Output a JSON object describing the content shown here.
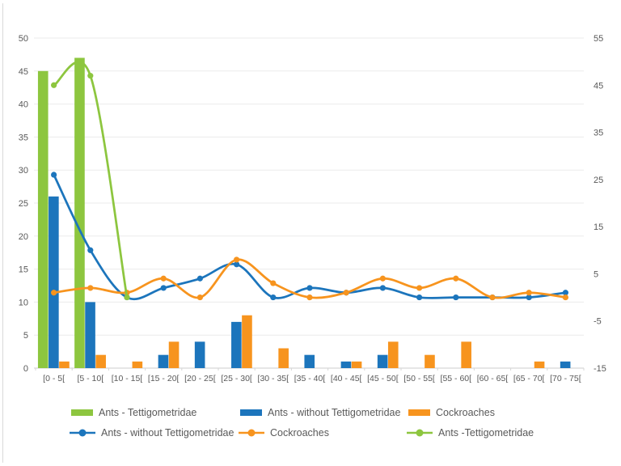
{
  "window": {
    "background": "#ffffff",
    "edge_color": "#d9d9d9"
  },
  "colors": {
    "green": "#8DC63F",
    "blue": "#1C75BC",
    "orange": "#F7941E",
    "gridline": "#EBEBEB",
    "axis_line": "#D6D6D6",
    "axis_text": "#595959"
  },
  "legend": {
    "bars": [
      {
        "key": "ants-tettigometridae",
        "label": "Ants - Tettigometridae",
        "color": "#8DC63F"
      },
      {
        "key": "ants-without-tettigometridae",
        "label": "Ants - without Tettigometridae",
        "color": "#1C75BC"
      },
      {
        "key": "cockroaches",
        "label": "Cockroaches",
        "color": "#F7941E"
      }
    ],
    "lines": [
      {
        "key": "ants-without-tettigometridae",
        "label": "Ants - without Tettigometridae",
        "color": "#1C75BC"
      },
      {
        "key": "cockroaches",
        "label": "Cockroaches",
        "color": "#F7941E"
      },
      {
        "key": "ants-tettigometridae",
        "label": "Ants -Tettigometridae",
        "color": "#8DC63F"
      }
    ]
  },
  "chart_data": {
    "type": "bar",
    "subtype": "combo-clustered-bar-plus-smoothed-line",
    "title": "",
    "xlabel": "",
    "ylabel": "",
    "grid": "horizontal, every 5 units of left axis",
    "legend_position": "bottom, two rows (bars row then lines row)",
    "categories": [
      "[0 - 5[",
      "[5 - 10[",
      "[10 - 15[",
      "[15 - 20[",
      "[20 - 25[",
      "[25 - 30[",
      "[30 - 35[",
      "[35 - 40[",
      "[40 - 45[",
      "[45 - 50[",
      "[50 - 55[",
      "[55 - 60[",
      "[60 - 65[",
      "[65 - 70[",
      "[70 - 75["
    ],
    "left_axis": {
      "min": 0,
      "max": 50,
      "step": 5
    },
    "right_axis": {
      "min": -15,
      "max": 55,
      "step": 10
    },
    "bar_series": [
      {
        "key": "ants-tettigometridae",
        "name": "Ants - Tettigometridae",
        "color": "#8DC63F",
        "axis": "left",
        "values": [
          45,
          47,
          0,
          null,
          null,
          null,
          null,
          null,
          null,
          null,
          null,
          null,
          null,
          null,
          null
        ]
      },
      {
        "key": "ants-without-tettigometridae",
        "name": "Ants - without Tettigometridae",
        "color": "#1C75BC",
        "axis": "left",
        "values": [
          26,
          10,
          0,
          2,
          4,
          7,
          0,
          2,
          1,
          2,
          0,
          0,
          0,
          0,
          1
        ]
      },
      {
        "key": "cockroaches",
        "name": "Cockroaches",
        "color": "#F7941E",
        "axis": "left",
        "values": [
          1,
          2,
          1,
          4,
          0,
          8,
          3,
          0,
          1,
          4,
          2,
          4,
          0,
          1,
          0
        ]
      }
    ],
    "line_series": [
      {
        "key": "ants-without-tettigometridae",
        "name": "Ants - without Tettigometridae",
        "color": "#1C75BC",
        "axis": "right",
        "smooth": true,
        "marker": "circle",
        "values": [
          26,
          10,
          0,
          2,
          4,
          7,
          0,
          2,
          1,
          2,
          0,
          0,
          0,
          0,
          1
        ]
      },
      {
        "key": "cockroaches",
        "name": "Cockroaches",
        "color": "#F7941E",
        "axis": "right",
        "smooth": true,
        "marker": "circle",
        "values": [
          1,
          2,
          1,
          4,
          0,
          8,
          3,
          0,
          1,
          4,
          2,
          4,
          0,
          1,
          0
        ]
      },
      {
        "key": "ants-tettigometridae",
        "name": "Ants -Tettigometridae",
        "color": "#8DC63F",
        "axis": "right",
        "smooth": true,
        "marker": "circle",
        "values": [
          45,
          47,
          0,
          null,
          null,
          null,
          null,
          null,
          null,
          null,
          null,
          null,
          null,
          null,
          null
        ]
      }
    ]
  }
}
